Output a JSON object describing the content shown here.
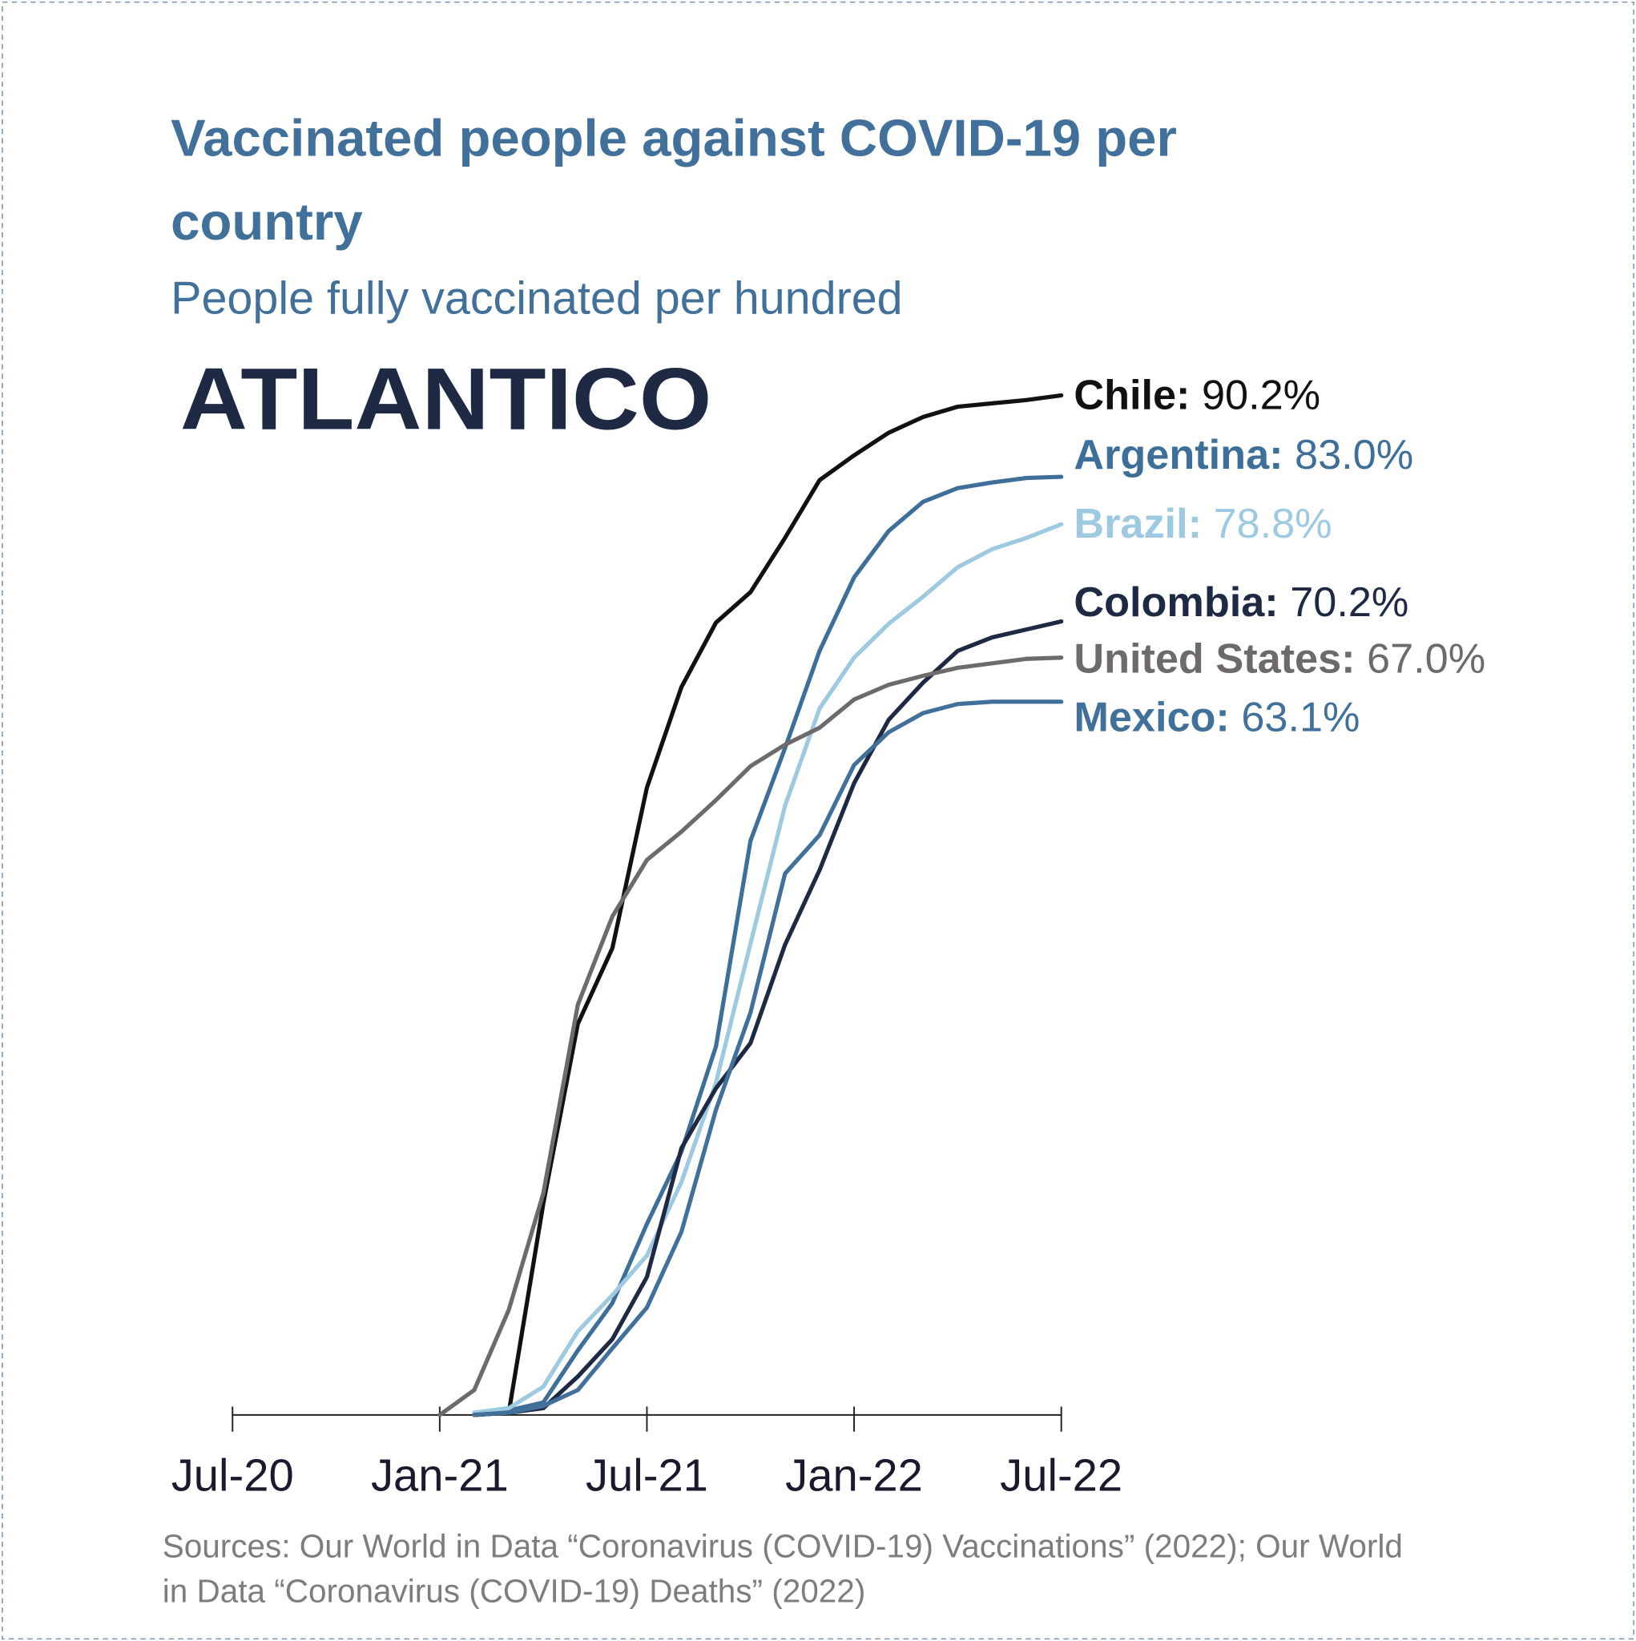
{
  "chart_data": {
    "type": "line",
    "title": "Vaccinated people against COVID-19 per country",
    "subtitle": "People fully vaccinated per hundred",
    "logo": "ATLANTICO",
    "source": "Sources: Our World in Data “Coronavirus (COVID-19) Vaccinations” (2022); Our World in Data “Coronavirus (COVID-19) Deaths” (2022)",
    "xlim": [
      "2020-07",
      "2022-07"
    ],
    "xticks": [
      {
        "value": "2020-07",
        "label": "Jul-20"
      },
      {
        "value": "2021-01",
        "label": "Jan-21"
      },
      {
        "value": "2021-07",
        "label": "Jul-21"
      },
      {
        "value": "2022-01",
        "label": "Jan-22"
      },
      {
        "value": "2022-07",
        "label": "Jul-22"
      }
    ],
    "ylim": [
      0,
      100
    ],
    "series": [
      {
        "name": "Chile:",
        "color": "#111111",
        "x": [
          "2021-02",
          "2021-03",
          "2021-04",
          "2021-05",
          "2021-06",
          "2021-07",
          "2021-08",
          "2021-09",
          "2021-10",
          "2021-11",
          "2021-12",
          "2022-01",
          "2022-02",
          "2022-03",
          "2022-04",
          "2022-05",
          "2022-06",
          "2022-07"
        ],
        "values": [
          0,
          0.2,
          18.7,
          34.6,
          41.3,
          55.5,
          64.4,
          70.1,
          72.8,
          77.6,
          82.7,
          84.9,
          86.9,
          88.3,
          89.2,
          89.5,
          89.8,
          90.2
        ],
        "value_labels": [
          null,
          null,
          null,
          null,
          null,
          null,
          null,
          null,
          null,
          null,
          null,
          null,
          null,
          null,
          null,
          null,
          null,
          "90.2%"
        ]
      },
      {
        "name": "Argentina:",
        "color": "#3e6f99",
        "x": [
          "2021-02",
          "2021-03",
          "2021-04",
          "2021-05",
          "2021-06",
          "2021-07",
          "2021-08",
          "2021-09",
          "2021-10",
          "2021-11",
          "2021-12",
          "2022-01",
          "2022-02",
          "2022-03",
          "2022-04",
          "2022-05",
          "2022-06",
          "2022-07"
        ],
        "values": [
          0.2,
          0.4,
          1.1,
          5.7,
          9.9,
          16.9,
          23.3,
          32.6,
          50.8,
          59.0,
          67.6,
          74.1,
          78.2,
          80.8,
          82.0,
          82.5,
          82.9,
          83.0
        ],
        "value_labels": [
          null,
          null,
          null,
          null,
          null,
          null,
          null,
          null,
          null,
          null,
          null,
          null,
          null,
          null,
          null,
          null,
          null,
          "83.0%"
        ]
      },
      {
        "name": "Brazil:",
        "color": "#9ecae1",
        "x": [
          "2021-02",
          "2021-03",
          "2021-04",
          "2021-05",
          "2021-06",
          "2021-07",
          "2021-08",
          "2021-09",
          "2021-10",
          "2021-11",
          "2021-12",
          "2022-01",
          "2022-02",
          "2022-03",
          "2022-04",
          "2022-05",
          "2022-06",
          "2022-07"
        ],
        "values": [
          0.2,
          0.6,
          2.5,
          7.4,
          10.6,
          14.1,
          20.6,
          29.4,
          41.7,
          53.9,
          62.5,
          67.0,
          70.0,
          72.4,
          75.0,
          76.6,
          77.6,
          78.8
        ],
        "value_labels": [
          null,
          null,
          null,
          null,
          null,
          null,
          null,
          null,
          null,
          null,
          null,
          null,
          null,
          null,
          null,
          null,
          null,
          "78.8%"
        ]
      },
      {
        "name": "Colombia:",
        "color": "#1e2a44",
        "x": [
          "2021-02",
          "2021-03",
          "2021-04",
          "2021-05",
          "2021-06",
          "2021-07",
          "2021-08",
          "2021-09",
          "2021-10",
          "2021-11",
          "2021-12",
          "2022-01",
          "2022-02",
          "2022-03",
          "2022-04",
          "2022-05",
          "2022-06",
          "2022-07"
        ],
        "values": [
          0,
          0.2,
          0.6,
          3.4,
          6.7,
          12.2,
          23.6,
          28.9,
          32.9,
          41.6,
          48.2,
          55.9,
          61.5,
          64.8,
          67.6,
          68.8,
          69.5,
          70.2
        ],
        "value_labels": [
          null,
          null,
          null,
          null,
          null,
          null,
          null,
          null,
          null,
          null,
          null,
          null,
          null,
          null,
          null,
          null,
          null,
          "70.2%"
        ]
      },
      {
        "name": "United States:",
        "color": "#6e6a6a",
        "x": [
          "2021-01",
          "2021-02",
          "2021-03",
          "2021-04",
          "2021-05",
          "2021-06",
          "2021-07",
          "2021-08",
          "2021-09",
          "2021-10",
          "2021-11",
          "2021-12",
          "2022-01",
          "2022-02",
          "2022-03",
          "2022-04",
          "2022-05",
          "2022-06",
          "2022-07"
        ],
        "values": [
          0,
          2.2,
          9.3,
          19.6,
          36.3,
          44.1,
          49.1,
          51.6,
          54.4,
          57.4,
          59.3,
          60.8,
          63.3,
          64.6,
          65.4,
          66.1,
          66.5,
          66.9,
          67.0
        ],
        "value_labels": [
          null,
          null,
          null,
          null,
          null,
          null,
          null,
          null,
          null,
          null,
          null,
          null,
          null,
          null,
          null,
          null,
          null,
          null,
          "67.0%"
        ]
      },
      {
        "name": "Mexico:",
        "color": "#41709a",
        "x": [
          "2021-02",
          "2021-03",
          "2021-04",
          "2021-05",
          "2021-06",
          "2021-07",
          "2021-08",
          "2021-09",
          "2021-10",
          "2021-11",
          "2021-12",
          "2022-01",
          "2022-02",
          "2022-03",
          "2022-04",
          "2022-05",
          "2022-06",
          "2022-07"
        ],
        "values": [
          0,
          0.2,
          0.8,
          2.2,
          5.9,
          9.5,
          16.2,
          27.0,
          35.6,
          47.9,
          51.3,
          57.5,
          60.4,
          62.1,
          62.9,
          63.1,
          63.1,
          63.1
        ],
        "value_labels": [
          null,
          null,
          null,
          null,
          null,
          null,
          null,
          null,
          null,
          null,
          null,
          null,
          null,
          null,
          null,
          null,
          null,
          "63.1%"
        ]
      }
    ]
  }
}
